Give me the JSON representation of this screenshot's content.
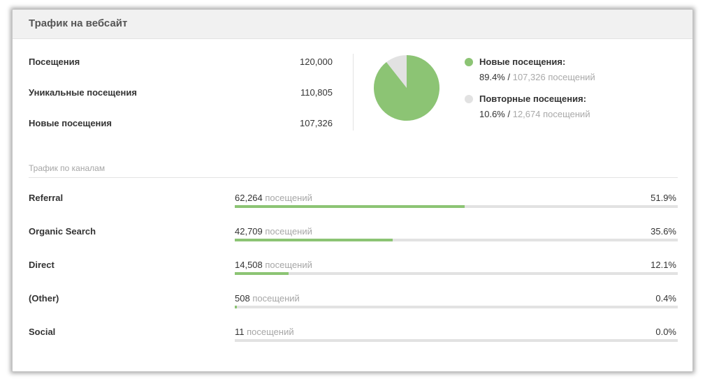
{
  "header": {
    "title": "Трафик на вебсайт"
  },
  "stats": [
    {
      "label": "Посещения",
      "value": "120,000"
    },
    {
      "label": "Уникальные посещения",
      "value": "110,805"
    },
    {
      "label": "Новые посещения",
      "value": "107,326"
    }
  ],
  "pie": {
    "colors": {
      "new": "#8cc474",
      "returning": "#e2e2e2"
    },
    "new_fraction": 0.894,
    "legend": [
      {
        "title": "Новые посещения:",
        "pct": "89.4%",
        "sep": " / ",
        "count": "107,326 посещений"
      },
      {
        "title": "Повторные посещения:",
        "pct": "10.6%",
        "sep": " / ",
        "count": "12,674 посещений"
      }
    ]
  },
  "channels": {
    "title": "Трафик по каналам",
    "unit": "посещений",
    "accent": "#8cc474",
    "rows": [
      {
        "name": "Referral",
        "count": "62,264",
        "pct": "51.9%",
        "fraction": 0.519
      },
      {
        "name": "Organic Search",
        "count": "42,709",
        "pct": "35.6%",
        "fraction": 0.356
      },
      {
        "name": "Direct",
        "count": "14,508",
        "pct": "12.1%",
        "fraction": 0.121
      },
      {
        "name": "(Other)",
        "count": "508",
        "pct": "0.4%",
        "fraction": 0.004
      },
      {
        "name": "Social",
        "count": "11",
        "pct": "0.0%",
        "fraction": 0.0
      }
    ]
  }
}
